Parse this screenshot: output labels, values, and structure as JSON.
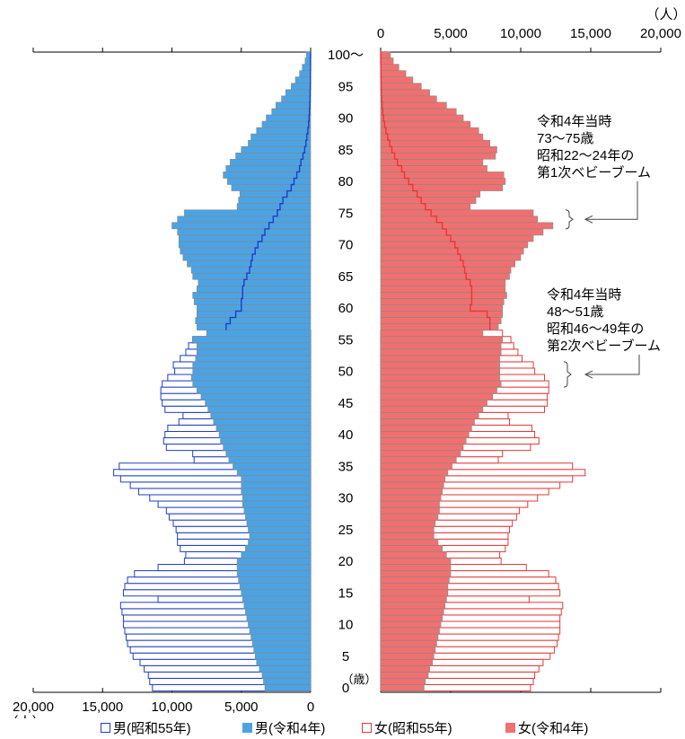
{
  "chart_data": {
    "type": "bar",
    "orientation": "horizontal",
    "layout": "population-pyramid",
    "unit_label": "（人）",
    "age_unit_label": "（歳）",
    "xlim": [
      0,
      20000
    ],
    "x_ticks": [
      0,
      5000,
      10000,
      15000,
      20000
    ],
    "x_tick_labels_left": [
      "20,000",
      "15,000",
      "10,000",
      "5,000",
      "0"
    ],
    "x_tick_labels_right": [
      "0",
      "5,000",
      "10,000",
      "15,000",
      "20,000"
    ],
    "age_tick_labels": [
      "0",
      "5",
      "10",
      "15",
      "20",
      "25",
      "30",
      "35",
      "40",
      "45",
      "50",
      "55",
      "60",
      "65",
      "70",
      "75",
      "80",
      "85",
      "90",
      "95",
      "100〜"
    ],
    "legend_position": "bottom",
    "series": [
      {
        "name": "男(昭和55年)",
        "side": "left",
        "style": "outline",
        "color": "#1f3fbf",
        "values": [
          11400,
          11600,
          11700,
          12000,
          12300,
          12800,
          13000,
          13200,
          13300,
          13400,
          13500,
          13500,
          13600,
          13700,
          11000,
          13500,
          13400,
          13200,
          12700,
          11000,
          9100,
          9000,
          9400,
          9600,
          9600,
          9700,
          9900,
          10200,
          10400,
          11000,
          11600,
          12400,
          13000,
          13700,
          14200,
          13800,
          8400,
          8500,
          10400,
          10600,
          10500,
          10300,
          9500,
          9200,
          10500,
          10700,
          10800,
          10800,
          10700,
          10300,
          9800,
          9900,
          9400,
          9000,
          8800,
          8500,
          7200,
          null,
          null,
          null,
          null,
          null,
          null,
          null,
          null,
          null,
          null,
          null,
          null,
          null,
          null,
          null,
          null,
          null,
          null,
          null,
          null,
          null,
          null,
          null,
          null,
          null,
          null,
          null,
          null,
          null,
          null,
          null,
          null,
          null,
          null,
          null,
          null,
          null,
          null,
          null,
          null,
          null,
          null,
          null,
          null
        ]
      },
      {
        "name": "男(令和4年)",
        "side": "left",
        "style": "filled",
        "color": "#4ba3e3",
        "values": [
          3300,
          3400,
          3500,
          3700,
          3900,
          4000,
          4100,
          4200,
          4300,
          4400,
          4500,
          4600,
          4700,
          4800,
          4900,
          5000,
          5100,
          5200,
          5300,
          5300,
          5300,
          5000,
          4700,
          4500,
          4400,
          4500,
          4600,
          4700,
          4800,
          4900,
          4900,
          5000,
          5000,
          5000,
          5300,
          5600,
          5900,
          6100,
          6300,
          6500,
          6600,
          6800,
          7000,
          7200,
          7400,
          7600,
          7900,
          8200,
          8500,
          8600,
          8500,
          8500,
          8300,
          8200,
          8200,
          8500,
          7500,
          8200,
          8300,
          8200,
          8200,
          8400,
          8500,
          8200,
          8100,
          8500,
          8600,
          8900,
          9200,
          9400,
          9500,
          9500,
          9600,
          10000,
          9600,
          9100,
          5300,
          5200,
          5100,
          5700,
          6000,
          6300,
          6100,
          5800,
          5400,
          5000,
          4500,
          4300,
          3900,
          3500,
          3200,
          2800,
          2500,
          2100,
          1800,
          1400,
          1100,
          800,
          600,
          400,
          300
        ]
      },
      {
        "name": "女(昭和55年)",
        "side": "right",
        "style": "outline",
        "color": "#e23a3a",
        "values": [
          10700,
          10900,
          11000,
          11300,
          11600,
          12100,
          12400,
          12600,
          12700,
          12800,
          12800,
          12800,
          12900,
          13000,
          10600,
          12800,
          12700,
          12500,
          12000,
          10400,
          8600,
          8500,
          8900,
          9100,
          9100,
          9200,
          9400,
          9700,
          9900,
          10500,
          11200,
          12000,
          12800,
          13700,
          14600,
          13700,
          8400,
          8700,
          10700,
          11300,
          11000,
          10800,
          9200,
          9100,
          11700,
          11900,
          11900,
          12000,
          12000,
          11700,
          11000,
          10900,
          10100,
          9800,
          9500,
          9300,
          8700,
          null,
          null,
          null,
          null,
          null,
          null,
          null,
          null,
          null,
          null,
          null,
          null,
          null,
          null,
          null,
          null,
          null,
          null,
          null,
          null,
          null,
          null,
          null,
          null,
          null,
          null,
          null,
          null,
          null,
          null,
          null,
          null,
          null,
          null,
          null,
          null,
          null,
          null,
          null,
          null,
          null,
          null,
          null,
          null
        ]
      },
      {
        "name": "女(令和4年)",
        "side": "right",
        "style": "filled",
        "color": "#f07070",
        "values": [
          3100,
          3200,
          3400,
          3500,
          3700,
          3800,
          3900,
          4000,
          4100,
          4200,
          4300,
          4400,
          4500,
          4600,
          4700,
          4800,
          4800,
          4900,
          5000,
          5000,
          5000,
          4700,
          4400,
          4100,
          3800,
          3800,
          3900,
          4100,
          4200,
          4200,
          4300,
          4400,
          4500,
          4600,
          4800,
          5100,
          5400,
          5700,
          5900,
          6100,
          6300,
          6500,
          6700,
          7000,
          7300,
          7600,
          8000,
          8300,
          8600,
          8500,
          8500,
          8500,
          8500,
          8600,
          8600,
          8700,
          7300,
          8400,
          8600,
          8700,
          8700,
          8800,
          9000,
          8900,
          8900,
          9200,
          9300,
          9600,
          10000,
          10200,
          10500,
          10900,
          11600,
          12300,
          11200,
          10900,
          6400,
          6800,
          7100,
          8700,
          8900,
          8800,
          7600,
          7300,
          8200,
          8300,
          7800,
          7300,
          7000,
          6400,
          5900,
          5400,
          4700,
          4000,
          3500,
          2900,
          2300,
          1800,
          1300,
          900,
          700
        ]
      }
    ],
    "overlay_lines": [
      {
        "side": "left",
        "name": "男(昭和55年)高齢部",
        "values": [
          null,
          null,
          null,
          null,
          null,
          null,
          null,
          null,
          null,
          null,
          null,
          null,
          null,
          null,
          null,
          null,
          null,
          null,
          null,
          null,
          null,
          null,
          null,
          null,
          null,
          null,
          null,
          null,
          null,
          null,
          null,
          null,
          null,
          null,
          null,
          null,
          null,
          null,
          null,
          null,
          null,
          null,
          null,
          null,
          null,
          null,
          null,
          null,
          null,
          null,
          null,
          null,
          null,
          null,
          null,
          null,
          null,
          6100,
          5800,
          5400,
          5000,
          5000,
          4900,
          4900,
          4800,
          4600,
          4400,
          4300,
          4200,
          4000,
          3800,
          3500,
          3300,
          3000,
          2700,
          2400,
          2200,
          2000,
          1700,
          1400,
          1200,
          1000,
          800,
          700,
          550,
          430,
          340,
          270,
          200,
          150,
          110,
          80,
          60,
          40,
          30,
          20,
          15,
          10,
          7,
          5,
          3
        ]
      },
      {
        "side": "right",
        "name": "女(昭和55年)高齢部",
        "values": [
          null,
          null,
          null,
          null,
          null,
          null,
          null,
          null,
          null,
          null,
          null,
          null,
          null,
          null,
          null,
          null,
          null,
          null,
          null,
          null,
          null,
          null,
          null,
          null,
          null,
          null,
          null,
          null,
          null,
          null,
          null,
          null,
          null,
          null,
          null,
          null,
          null,
          null,
          null,
          null,
          null,
          null,
          null,
          null,
          null,
          null,
          null,
          null,
          null,
          null,
          null,
          null,
          null,
          null,
          null,
          null,
          null,
          7800,
          7800,
          7600,
          6400,
          6500,
          6500,
          6500,
          6400,
          6100,
          6000,
          5900,
          5700,
          5500,
          5300,
          5000,
          4700,
          4400,
          4000,
          3600,
          3200,
          2900,
          2600,
          2300,
          2000,
          1700,
          1500,
          1200,
          1000,
          800,
          650,
          500,
          380,
          280,
          200,
          140,
          100,
          70,
          50,
          35,
          25,
          15,
          10,
          6,
          3
        ]
      }
    ],
    "annotations": [
      {
        "text": "令和4年当時\n73〜75歳\n昭和22〜24年の\n第1次ベビーブーム",
        "age_from": 73,
        "age_to": 75
      },
      {
        "text": "令和4年当時\n48〜51歳\n昭和46〜49年の\n第2次ベビーブーム",
        "age_from": 48,
        "age_to": 51
      }
    ]
  }
}
